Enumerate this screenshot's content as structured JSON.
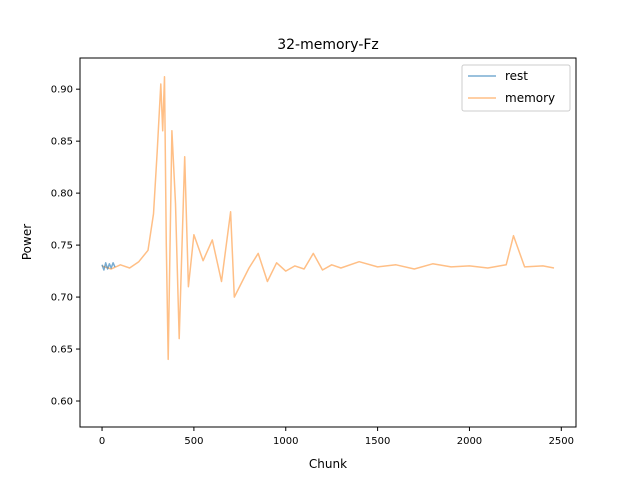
{
  "chart_data": {
    "type": "line",
    "title": "32-memory-Fz",
    "xlabel": "Chunk",
    "ylabel": "Power",
    "xlim": [
      -120,
      2580
    ],
    "ylim": [
      0.575,
      0.93
    ],
    "xticks": [
      0,
      500,
      1000,
      1500,
      2000,
      2500
    ],
    "xtick_labels": [
      "0",
      "500",
      "1000",
      "1500",
      "2000",
      "2500"
    ],
    "yticks": [
      0.6,
      0.65,
      0.7,
      0.75,
      0.8,
      0.85,
      0.9
    ],
    "ytick_labels": [
      "0.60",
      "0.65",
      "0.70",
      "0.75",
      "0.80",
      "0.85",
      "0.90"
    ],
    "grid": false,
    "legend_position": "top-right",
    "series": [
      {
        "name": "rest",
        "color": "#1f77b4",
        "alpha": 0.6,
        "x": [
          0,
          10,
          20,
          30,
          40,
          50,
          60,
          70
        ],
        "y": [
          0.731,
          0.726,
          0.733,
          0.727,
          0.732,
          0.728,
          0.733,
          0.729
        ]
      },
      {
        "name": "memory",
        "color": "#ff7f0e",
        "alpha": 0.5,
        "x": [
          0,
          50,
          100,
          150,
          200,
          250,
          280,
          300,
          320,
          330,
          340,
          350,
          360,
          380,
          400,
          420,
          450,
          470,
          500,
          550,
          600,
          650,
          700,
          720,
          800,
          850,
          900,
          950,
          1000,
          1050,
          1100,
          1150,
          1200,
          1250,
          1300,
          1400,
          1500,
          1600,
          1700,
          1800,
          1900,
          2000,
          2100,
          2200,
          2240,
          2300,
          2400,
          2460
        ],
        "y": [
          0.73,
          0.727,
          0.731,
          0.728,
          0.734,
          0.745,
          0.78,
          0.84,
          0.905,
          0.86,
          0.912,
          0.75,
          0.64,
          0.86,
          0.79,
          0.66,
          0.835,
          0.71,
          0.76,
          0.735,
          0.755,
          0.715,
          0.782,
          0.7,
          0.728,
          0.742,
          0.715,
          0.733,
          0.725,
          0.73,
          0.727,
          0.742,
          0.726,
          0.731,
          0.728,
          0.734,
          0.729,
          0.731,
          0.727,
          0.732,
          0.729,
          0.73,
          0.728,
          0.731,
          0.759,
          0.729,
          0.73,
          0.728
        ]
      }
    ]
  }
}
